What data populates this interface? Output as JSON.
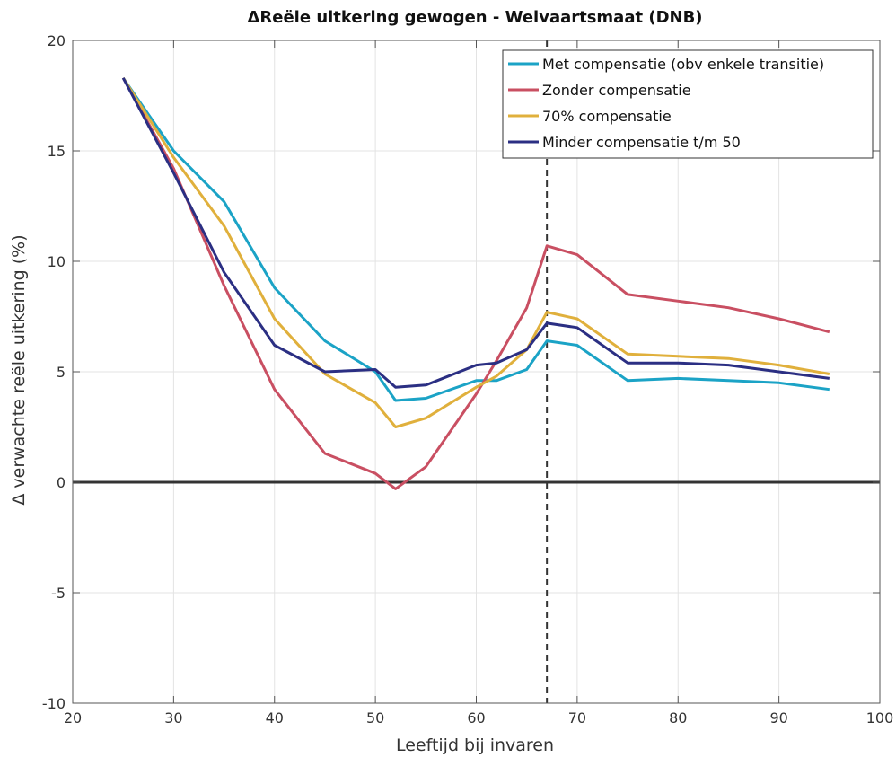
{
  "chart_data": {
    "type": "line",
    "title": "ΔReële uitkering gewogen - Welvaartsmaat (DNB)",
    "xlabel": "Leeftijd bij invaren",
    "ylabel": "Δ verwachte reële uitkering (%)",
    "xlim": [
      20,
      100
    ],
    "ylim": [
      -10,
      20
    ],
    "xticks": [
      20,
      30,
      40,
      50,
      60,
      70,
      80,
      90,
      100
    ],
    "yticks": [
      -10,
      -5,
      0,
      5,
      10,
      15,
      20
    ],
    "grid": true,
    "legend_position": "top-right",
    "reference_lines": {
      "horizontal_y": 0,
      "vertical_x": 67
    },
    "x": [
      25,
      30,
      35,
      40,
      45,
      50,
      52,
      55,
      60,
      62,
      65,
      67,
      70,
      75,
      80,
      85,
      90,
      95
    ],
    "series": [
      {
        "name": "Met compensatie (obv enkele transitie)",
        "color": "#1ba3c6",
        "values": [
          18.3,
          15.0,
          12.7,
          8.8,
          6.4,
          5.0,
          3.7,
          3.8,
          4.6,
          4.6,
          5.1,
          6.4,
          6.2,
          4.6,
          4.7,
          4.6,
          4.5,
          4.2
        ]
      },
      {
        "name": "Zonder compensatie",
        "color": "#c94f62",
        "values": [
          18.3,
          14.2,
          8.9,
          4.2,
          1.3,
          0.4,
          -0.3,
          0.7,
          4.0,
          5.5,
          7.9,
          10.7,
          10.3,
          8.5,
          8.2,
          7.9,
          7.4,
          6.8
        ]
      },
      {
        "name": "70% compensatie",
        "color": "#e0b03c",
        "values": [
          18.3,
          14.7,
          11.6,
          7.4,
          4.9,
          3.6,
          2.5,
          2.9,
          4.3,
          4.8,
          6.0,
          7.7,
          7.4,
          5.8,
          5.7,
          5.6,
          5.3,
          4.9
        ]
      },
      {
        "name": "Minder compensatie t/m 50",
        "color": "#2b2f83",
        "values": [
          18.3,
          14.0,
          9.5,
          6.2,
          5.0,
          5.1,
          4.3,
          4.4,
          5.3,
          5.4,
          6.0,
          7.2,
          7.0,
          5.4,
          5.4,
          5.3,
          5.0,
          4.7
        ]
      }
    ]
  }
}
